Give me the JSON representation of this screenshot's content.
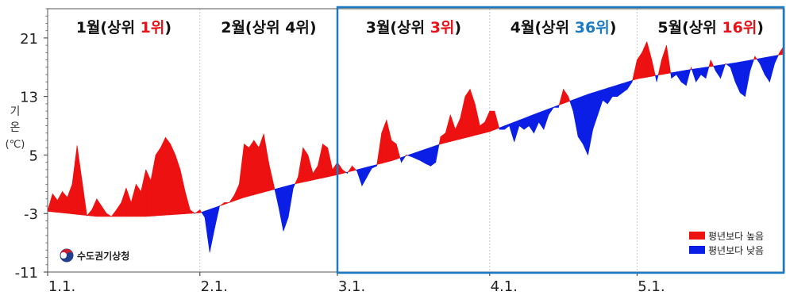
{
  "chart_data": {
    "type": "area",
    "ylabel": "기온 (℃)",
    "ylim": [
      -11,
      25
    ],
    "yticks": [
      -11,
      -3,
      5,
      13,
      21
    ],
    "xlim_days": [
      0,
      150
    ],
    "xticks": [
      {
        "day": 0,
        "label": "1.1."
      },
      {
        "day": 31,
        "label": "2.1."
      },
      {
        "day": 59,
        "label": "3.1."
      },
      {
        "day": 90,
        "label": "4.1."
      },
      {
        "day": 120,
        "label": "5.1."
      }
    ],
    "months": [
      {
        "prefix": "1월(상위 ",
        "rank": "1위",
        "suffix": ")",
        "color": "#e8121a"
      },
      {
        "prefix": "2월(상위 ",
        "rank": "4위",
        "suffix": ")",
        "color": "#111111"
      },
      {
        "prefix": "3월(상위 ",
        "rank": "3위",
        "suffix": ")",
        "color": "#e8121a"
      },
      {
        "prefix": "4월(상위 ",
        "rank": "36위",
        "suffix": ")",
        "color": "#1a7bc4"
      },
      {
        "prefix": "5월(상위 ",
        "rank": "16위",
        "suffix": ")",
        "color": "#e8121a"
      }
    ],
    "highlight_range_days": [
      59,
      150
    ],
    "legend": {
      "position": "bottom-right",
      "items": [
        {
          "label": "평년보다 높음",
          "color": "#ee1111"
        },
        {
          "label": "평년보다 낮음",
          "color": "#0a1ee6"
        }
      ]
    },
    "logo_text": "수도권기상청",
    "colors": {
      "above": "#ee1111",
      "below": "#0a1ee6",
      "highlight": "#1a7bc4"
    },
    "normal": [
      [
        0,
        -2.7
      ],
      [
        10,
        -3.4
      ],
      [
        20,
        -3.4
      ],
      [
        31,
        -2.9
      ],
      [
        40,
        -0.8
      ],
      [
        50,
        1.0
      ],
      [
        59,
        2.3
      ],
      [
        70,
        4.2
      ],
      [
        80,
        6.5
      ],
      [
        90,
        8.2
      ],
      [
        100,
        10.8
      ],
      [
        110,
        13.3
      ],
      [
        120,
        15.4
      ],
      [
        130,
        16.6
      ],
      [
        140,
        17.6
      ],
      [
        150,
        18.8
      ]
    ],
    "observed": [
      [
        0,
        -2.6
      ],
      [
        1,
        -0.3
      ],
      [
        2,
        -1.2
      ],
      [
        3,
        0
      ],
      [
        4,
        -0.8
      ],
      [
        5,
        1.0
      ],
      [
        6,
        6.3
      ],
      [
        7,
        1.5
      ],
      [
        8,
        -3.3
      ],
      [
        9,
        -2.5
      ],
      [
        10,
        -1.0
      ],
      [
        11,
        -2.0
      ],
      [
        12,
        -3.0
      ],
      [
        13,
        -3.4
      ],
      [
        14,
        -2.5
      ],
      [
        15,
        -1.5
      ],
      [
        16,
        0.5
      ],
      [
        17,
        -1.5
      ],
      [
        18,
        1.0
      ],
      [
        19,
        0.0
      ],
      [
        20,
        3.0
      ],
      [
        21,
        1.5
      ],
      [
        22,
        5.0
      ],
      [
        23,
        6.0
      ],
      [
        24,
        7.4
      ],
      [
        25,
        6.5
      ],
      [
        26,
        5.0
      ],
      [
        27,
        3.0
      ],
      [
        28,
        0.0
      ],
      [
        29,
        -2.5
      ],
      [
        30,
        -3.0
      ],
      [
        31,
        -2.5
      ],
      [
        32,
        -3.5
      ],
      [
        33,
        -8.3
      ],
      [
        34,
        -5.0
      ],
      [
        35,
        -2.0
      ],
      [
        36,
        -1.5
      ],
      [
        37,
        -1.5
      ],
      [
        38,
        -0.5
      ],
      [
        39,
        1.0
      ],
      [
        40,
        6.5
      ],
      [
        41,
        6.0
      ],
      [
        42,
        7.0
      ],
      [
        43,
        6.0
      ],
      [
        44,
        7.9
      ],
      [
        45,
        4.0
      ],
      [
        46,
        1.0
      ],
      [
        47,
        -2.0
      ],
      [
        48,
        -5.4
      ],
      [
        49,
        -3.5
      ],
      [
        50,
        0.5
      ],
      [
        51,
        2.0
      ],
      [
        52,
        6.0
      ],
      [
        53,
        5.0
      ],
      [
        54,
        2.5
      ],
      [
        55,
        3.5
      ],
      [
        56,
        6.5
      ],
      [
        57,
        6.0
      ],
      [
        58,
        3.0
      ],
      [
        59,
        4.0
      ],
      [
        60,
        3.0
      ],
      [
        61,
        2.5
      ],
      [
        62,
        3.5
      ],
      [
        63,
        2.8
      ],
      [
        64,
        0.8
      ],
      [
        65,
        2.0
      ],
      [
        66,
        3.2
      ],
      [
        67,
        3.5
      ],
      [
        68,
        8.0
      ],
      [
        69,
        9.8
      ],
      [
        70,
        7.0
      ],
      [
        71,
        6.5
      ],
      [
        72,
        4.0
      ],
      [
        73,
        5.0
      ],
      [
        74,
        4.8
      ],
      [
        75,
        4.5
      ],
      [
        76,
        4.2
      ],
      [
        77,
        3.8
      ],
      [
        78,
        3.5
      ],
      [
        79,
        4.0
      ],
      [
        80,
        7.5
      ],
      [
        81,
        8.0
      ],
      [
        82,
        10.5
      ],
      [
        83,
        8.5
      ],
      [
        84,
        10.0
      ],
      [
        85,
        13.0
      ],
      [
        86,
        14.0
      ],
      [
        87,
        12.0
      ],
      [
        88,
        9.0
      ],
      [
        89,
        9.5
      ],
      [
        90,
        11.0
      ],
      [
        91,
        11.0
      ],
      [
        92,
        8.5
      ],
      [
        93,
        8.5
      ],
      [
        94,
        9.0
      ],
      [
        95,
        6.8
      ],
      [
        96,
        9.0
      ],
      [
        97,
        8.5
      ],
      [
        98,
        9.0
      ],
      [
        99,
        8.0
      ],
      [
        100,
        9.5
      ],
      [
        101,
        8.5
      ],
      [
        102,
        10.5
      ],
      [
        103,
        11.5
      ],
      [
        104,
        11.5
      ],
      [
        105,
        14.0
      ],
      [
        106,
        13.0
      ],
      [
        107,
        11.0
      ],
      [
        108,
        7.5
      ],
      [
        109,
        6.5
      ],
      [
        110,
        5.0
      ],
      [
        111,
        8.5
      ],
      [
        112,
        10.5
      ],
      [
        113,
        12.5
      ],
      [
        114,
        12.0
      ],
      [
        115,
        13.0
      ],
      [
        116,
        13.0
      ],
      [
        117,
        13.5
      ],
      [
        118,
        14.0
      ],
      [
        119,
        15.0
      ],
      [
        120,
        18.0
      ],
      [
        121,
        19.0
      ],
      [
        122,
        20.5
      ],
      [
        123,
        18.0
      ],
      [
        124,
        15.0
      ],
      [
        125,
        18.0
      ],
      [
        126,
        20.0
      ],
      [
        127,
        15.5
      ],
      [
        128,
        16.0
      ],
      [
        129,
        15.0
      ],
      [
        130,
        14.5
      ],
      [
        131,
        17.0
      ],
      [
        132,
        15.0
      ],
      [
        133,
        16.0
      ],
      [
        134,
        15.5
      ],
      [
        135,
        18.0
      ],
      [
        136,
        16.5
      ],
      [
        137,
        15.5
      ],
      [
        138,
        17.5
      ],
      [
        139,
        17.0
      ],
      [
        140,
        15.0
      ],
      [
        141,
        13.5
      ],
      [
        142,
        13.0
      ],
      [
        143,
        16.5
      ],
      [
        144,
        18.5
      ],
      [
        145,
        17.5
      ],
      [
        146,
        16.0
      ],
      [
        147,
        15.0
      ],
      [
        148,
        17.5
      ],
      [
        149,
        19.0
      ],
      [
        150,
        20.0
      ]
    ]
  }
}
